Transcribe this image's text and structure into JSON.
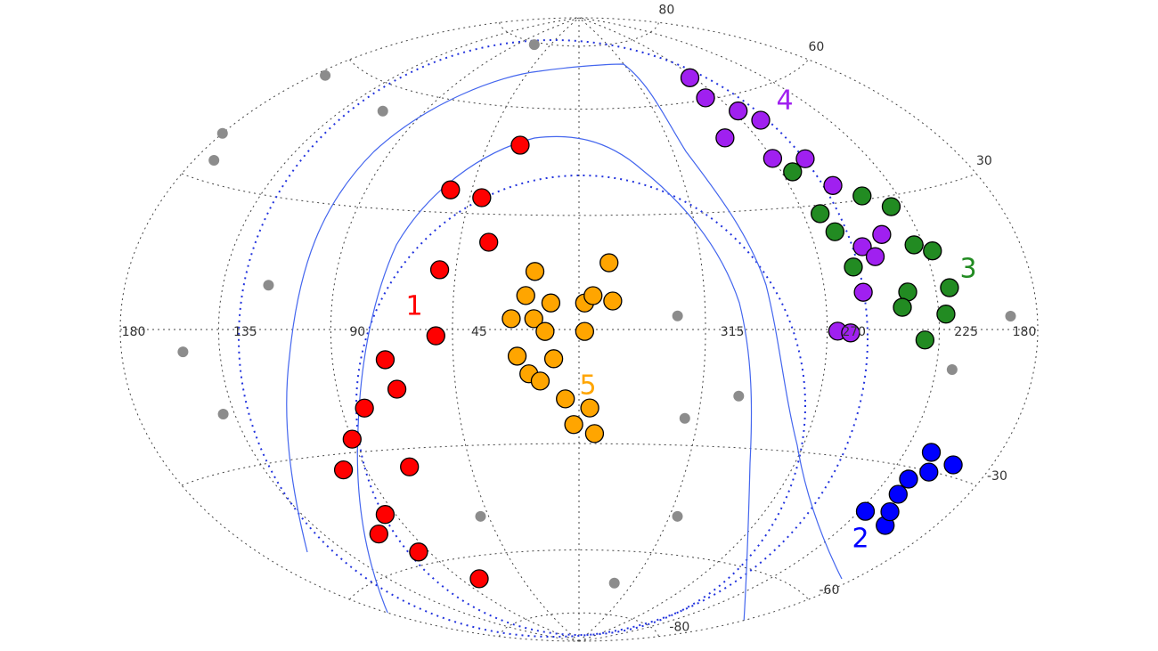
{
  "chart_data": {
    "type": "scatter",
    "projection": "hammer",
    "lon_ticks": [
      180,
      135,
      90,
      45,
      315,
      270,
      225,
      180
    ],
    "lat_ticks": [
      80,
      60,
      30,
      -30,
      -60,
      -80
    ],
    "grid": true,
    "series": [
      {
        "name": "1",
        "color": "#ff0000",
        "x": [
          29,
          54,
          34,
          51,
          51,
          70,
          67,
          81,
          90,
          100,
          71,
          95,
          96,
          77,
          107,
          40
        ],
        "values": [
          49.1,
          36.0,
          22.6,
          15.2,
          -1.6,
          -7.5,
          -14.9,
          -19.3,
          -26.7,
          -33.9,
          -34.7,
          -46.0,
          -56.6,
          -66.4,
          -50.4,
          34.3
        ]
      },
      {
        "name": "2",
        "color": "#0000ff",
        "x": [
          222,
          205,
          214,
          208,
          199,
          213,
          215,
          210
        ],
        "values": [
          -41.1,
          -42.6,
          -36.0,
          -30.2,
          -27.7,
          -26.2,
          -32.5,
          -39.8
        ]
      },
      {
        "name": "3",
        "color": "#228b22",
        "x": [
          265,
          263,
          260,
          241,
          231,
          229,
          222,
          237,
          219,
          222,
          231,
          257,
          240
        ],
        "values": [
          38.7,
          27.9,
          23.3,
          30.9,
          27.6,
          18.7,
          17.0,
          8.4,
          8.9,
          3.3,
          -2.3,
          14.7,
          5.0
        ]
      },
      {
        "name": "4",
        "color": "#a020f0",
        "x": [
          273,
          278,
          267,
          260,
          286,
          270,
          255,
          251,
          251,
          241,
          247,
          255,
          266,
          261
        ],
        "values": [
          66.5,
          60.5,
          55.7,
          52.4,
          49.3,
          42.6,
          41.4,
          34.2,
          19.3,
          21.7,
          16.8,
          8.7,
          -0.4,
          -0.8
        ]
      },
      {
        "name": "5",
        "color": "#ffa500",
        "x": [
          16,
          19,
          10,
          16,
          12,
          22,
          18,
          14,
          9,
          358,
          355,
          349,
          348,
          358,
          5,
          356,
          2,
          354,
          24
        ],
        "values": [
          15.1,
          8.8,
          6.9,
          2.8,
          -0.5,
          -6.9,
          -11.5,
          -13.4,
          -7.6,
          6.9,
          8.8,
          17.4,
          7.4,
          -0.5,
          -18.1,
          -20.5,
          -24.9,
          -27.3,
          2.8
        ]
      },
      {
        "color": "#8c8c8c",
        "x": [
          170,
          174,
          113,
          68,
          180,
          325,
          320,
          301,
          311,
          49,
          116,
          151,
          193,
          218,
          330,
          140
        ],
        "values": [
          34.2,
          55.8,
          53.8,
          79.2,
          39.0,
          3.5,
          -22.9,
          -16.8,
          -49.2,
          -49.2,
          10.1,
          -4.6,
          2.6,
          -8.5,
          -69.9,
          -18.2
        ]
      }
    ]
  }
}
